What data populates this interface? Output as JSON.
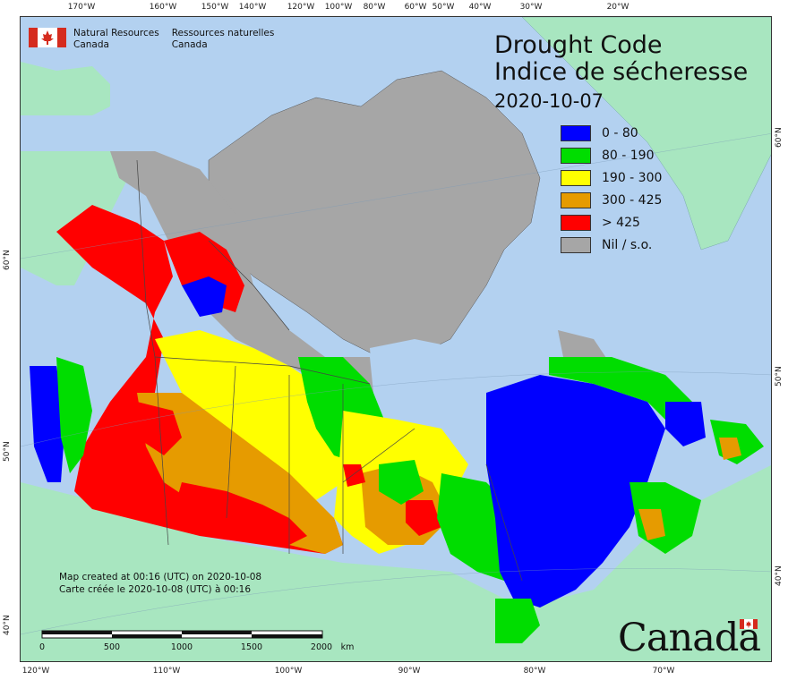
{
  "title": {
    "line1": "Drought Code",
    "line2": "Indice de sécheresse",
    "date": "2020-10-07"
  },
  "legend": [
    {
      "label": "0 - 80",
      "color": "#0000ff"
    },
    {
      "label": "80 - 190",
      "color": "#00dd00"
    },
    {
      "label": "190 - 300",
      "color": "#ffff00"
    },
    {
      "label": "300 - 425",
      "color": "#e69b00"
    },
    {
      "label": "> 425",
      "color": "#ff0000"
    },
    {
      "label": "Nil / s.o.",
      "color": "#a6a6a6"
    }
  ],
  "agency": {
    "en_line1": "Natural Resources",
    "en_line2": "Canada",
    "fr_line1": "Ressources naturelles",
    "fr_line2": "Canada"
  },
  "credit": {
    "en": "Map created at 00:16 (UTC) on 2020-10-08",
    "fr": "Carte créée le 2020-10-08 (UTC) à 00:16"
  },
  "scale": {
    "labels": [
      "0",
      "500",
      "1000",
      "1500",
      "2000"
    ],
    "unit": "km"
  },
  "wordmark": "Canada",
  "top_ticks": [
    "170°W",
    "160°W",
    "150°W",
    "140°W",
    "120°W",
    "100°W",
    "80°W",
    "60°W",
    "50°W",
    "40°W",
    "30°W",
    "20°W"
  ],
  "bottom_ticks": [
    "120°W",
    "110°W",
    "100°W",
    "90°W",
    "80°W",
    "70°W"
  ],
  "left_ticks": [
    "60°N",
    "50°N",
    "40°N"
  ],
  "right_ticks": [
    "60°N",
    "50°N",
    "40°N"
  ],
  "colors": {
    "ocean": "#b3d1f0",
    "land_foreign": "#a8e6c0",
    "nodata": "#a6a6a6"
  }
}
